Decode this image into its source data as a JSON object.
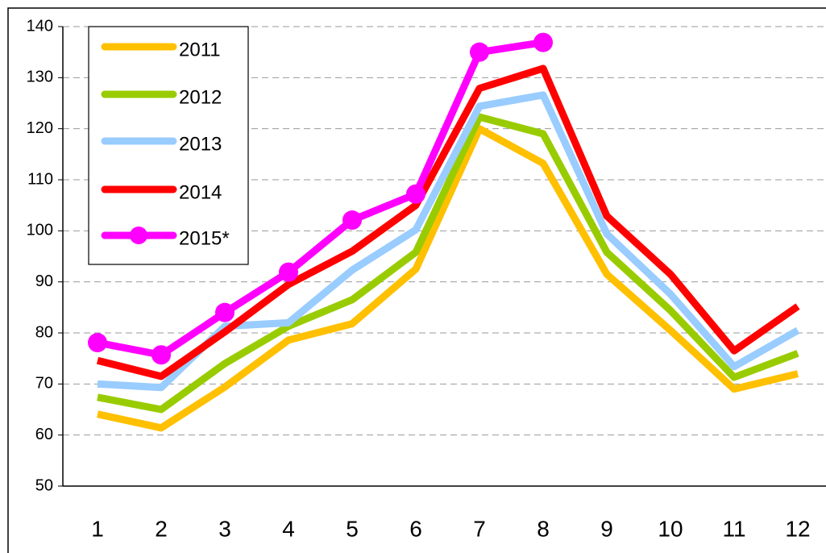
{
  "chart_data": {
    "type": "line",
    "categories": [
      "1",
      "2",
      "3",
      "4",
      "5",
      "6",
      "7",
      "8",
      "9",
      "10",
      "11",
      "12"
    ],
    "series": [
      {
        "name": "2011",
        "color": "#ffc000",
        "values": [
          64.1,
          61.4,
          69.4,
          78.6,
          81.8,
          92.5,
          120,
          113.2,
          91.5,
          80.5,
          69,
          72
        ]
      },
      {
        "name": "2012",
        "color": "#99cc00",
        "values": [
          67.4,
          65,
          74,
          81.3,
          86.5,
          95.8,
          122.3,
          119,
          95.8,
          84.4,
          71.3,
          76
        ]
      },
      {
        "name": "2013",
        "color": "#99ccff",
        "values": [
          70,
          69.3,
          81.3,
          82,
          92.3,
          100.2,
          124.4,
          126.6,
          99.4,
          87.6,
          73.4,
          80.5
        ]
      },
      {
        "name": "2014",
        "color": "#ff0000",
        "values": [
          74.6,
          71.5,
          80.2,
          89.5,
          96,
          105,
          127.9,
          131.8,
          102.9,
          91.5,
          76.5,
          85.2
        ]
      },
      {
        "name": "2015*",
        "color": "#ff00ff",
        "marker": true,
        "values": [
          78.1,
          75.7,
          84,
          91.9,
          102.1,
          107.2,
          135,
          136.9,
          null,
          null,
          null,
          null
        ]
      }
    ],
    "ylim": [
      50,
      140
    ],
    "yticks": [
      50,
      60,
      70,
      80,
      90,
      100,
      110,
      120,
      130,
      140
    ],
    "grid": true,
    "legend": "upper left"
  }
}
